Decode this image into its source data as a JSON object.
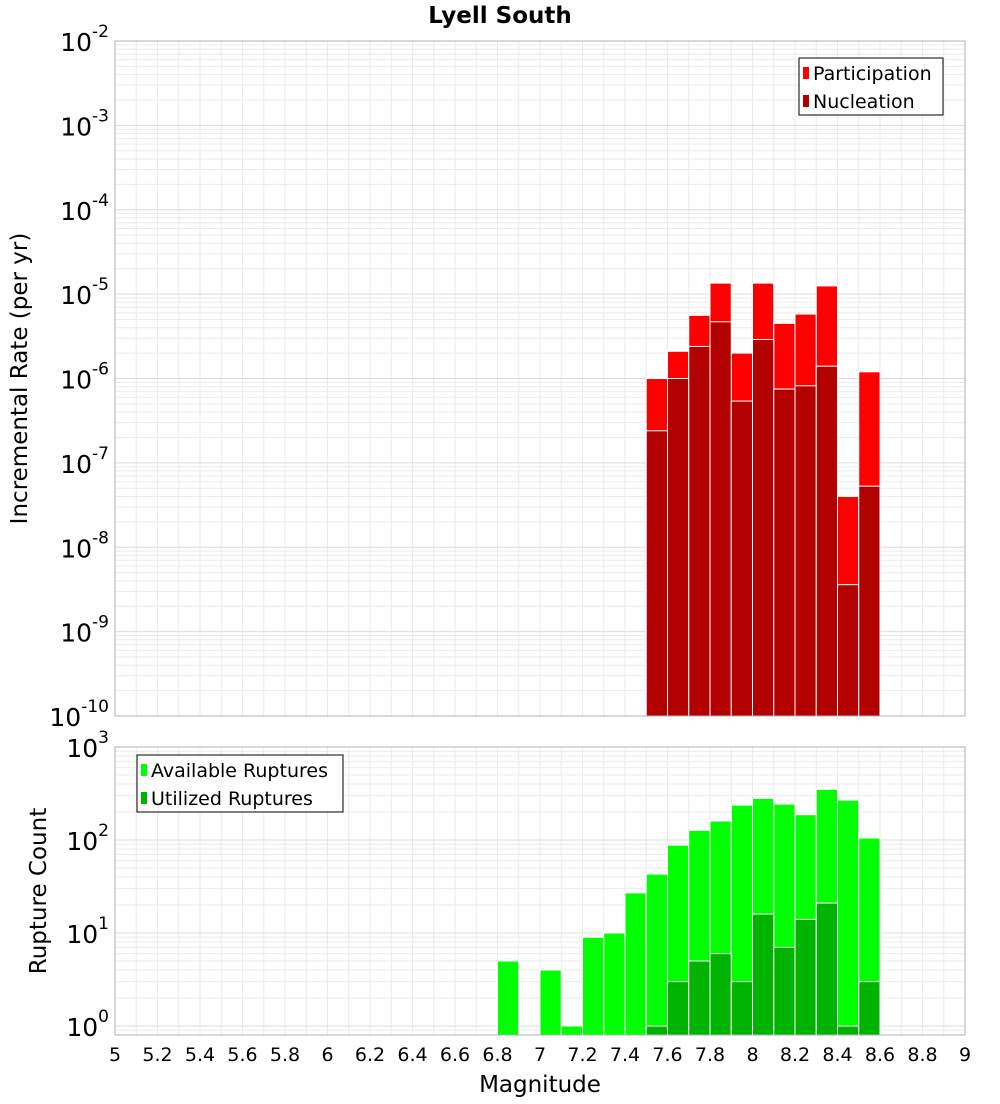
{
  "title": "Lyell South",
  "colors": {
    "participation": "#ff0000",
    "nucleation": "#b30000",
    "available": "#00ff00",
    "utilized": "#00b300",
    "grid": "#ebebeb",
    "frame": "#b0b0b0"
  },
  "chart_data": [
    {
      "type": "bar",
      "panel": "top",
      "title": "Lyell South",
      "xlabel": "",
      "ylabel": "Incremental Rate (per yr)",
      "xlim": [
        5,
        9
      ],
      "yscale": "log",
      "ylim": [
        1e-10,
        0.01
      ],
      "y_tick_exponents": [
        "-10",
        "-9",
        "-8",
        "-7",
        "-6",
        "-5",
        "-4",
        "-3",
        "-2"
      ],
      "y_tick_base": "10",
      "grid": true,
      "legend_position": "top-right",
      "legend": [
        "Participation",
        "Nucleation"
      ],
      "bar_width": 0.1,
      "x": [
        7.55,
        7.65,
        7.75,
        7.85,
        7.95,
        8.05,
        8.15,
        8.25,
        8.35,
        8.45,
        8.55
      ],
      "series": [
        {
          "name": "Participation",
          "color": "#ff0000",
          "values": [
            1e-06,
            2.1e-06,
            5.6e-06,
            1.35e-05,
            2e-06,
            1.35e-05,
            4.5e-06,
            5.8e-06,
            1.25e-05,
            4e-08,
            1.2e-06
          ]
        },
        {
          "name": "Nucleation",
          "color": "#b30000",
          "values": [
            2.4e-07,
            1e-06,
            2.4e-06,
            4.7e-06,
            5.4e-07,
            2.9e-06,
            7.5e-07,
            8.2e-07,
            1.4e-06,
            3.6e-09,
            5.3e-08
          ]
        }
      ]
    },
    {
      "type": "bar",
      "panel": "bottom",
      "title": "",
      "xlabel": "Magnitude",
      "ylabel": "Rupture Count",
      "xlim": [
        5,
        9
      ],
      "x_ticks": [
        "5",
        "5.2",
        "5.4",
        "5.6",
        "5.8",
        "6",
        "6.2",
        "6.4",
        "6.6",
        "6.8",
        "7",
        "7.2",
        "7.4",
        "7.6",
        "7.8",
        "8",
        "8.2",
        "8.4",
        "8.6",
        "8.8",
        "9"
      ],
      "yscale": "log",
      "ylim": [
        0.8,
        1000
      ],
      "y_tick_exponents": [
        "0",
        "1",
        "2",
        "3"
      ],
      "y_tick_base": "10",
      "grid": true,
      "legend_position": "top-left",
      "legend": [
        "Available Ruptures",
        "Utilized Ruptures"
      ],
      "bar_width": 0.1,
      "x": [
        6.85,
        7.05,
        7.15,
        7.25,
        7.35,
        7.45,
        7.55,
        7.65,
        7.75,
        7.85,
        7.95,
        8.05,
        8.15,
        8.25,
        8.35,
        8.45,
        8.55
      ],
      "series": [
        {
          "name": "Available Ruptures",
          "color": "#00ff00",
          "values": [
            5,
            4,
            1,
            9,
            10,
            27,
            43,
            88,
            127,
            160,
            237,
            280,
            243,
            187,
            350,
            268,
            105
          ]
        },
        {
          "name": "Utilized Ruptures",
          "color": "#00b300",
          "values": [
            0,
            0,
            0,
            0,
            0,
            0,
            1,
            3,
            5,
            6,
            3,
            16,
            7,
            14,
            21,
            1,
            3
          ]
        }
      ]
    }
  ]
}
